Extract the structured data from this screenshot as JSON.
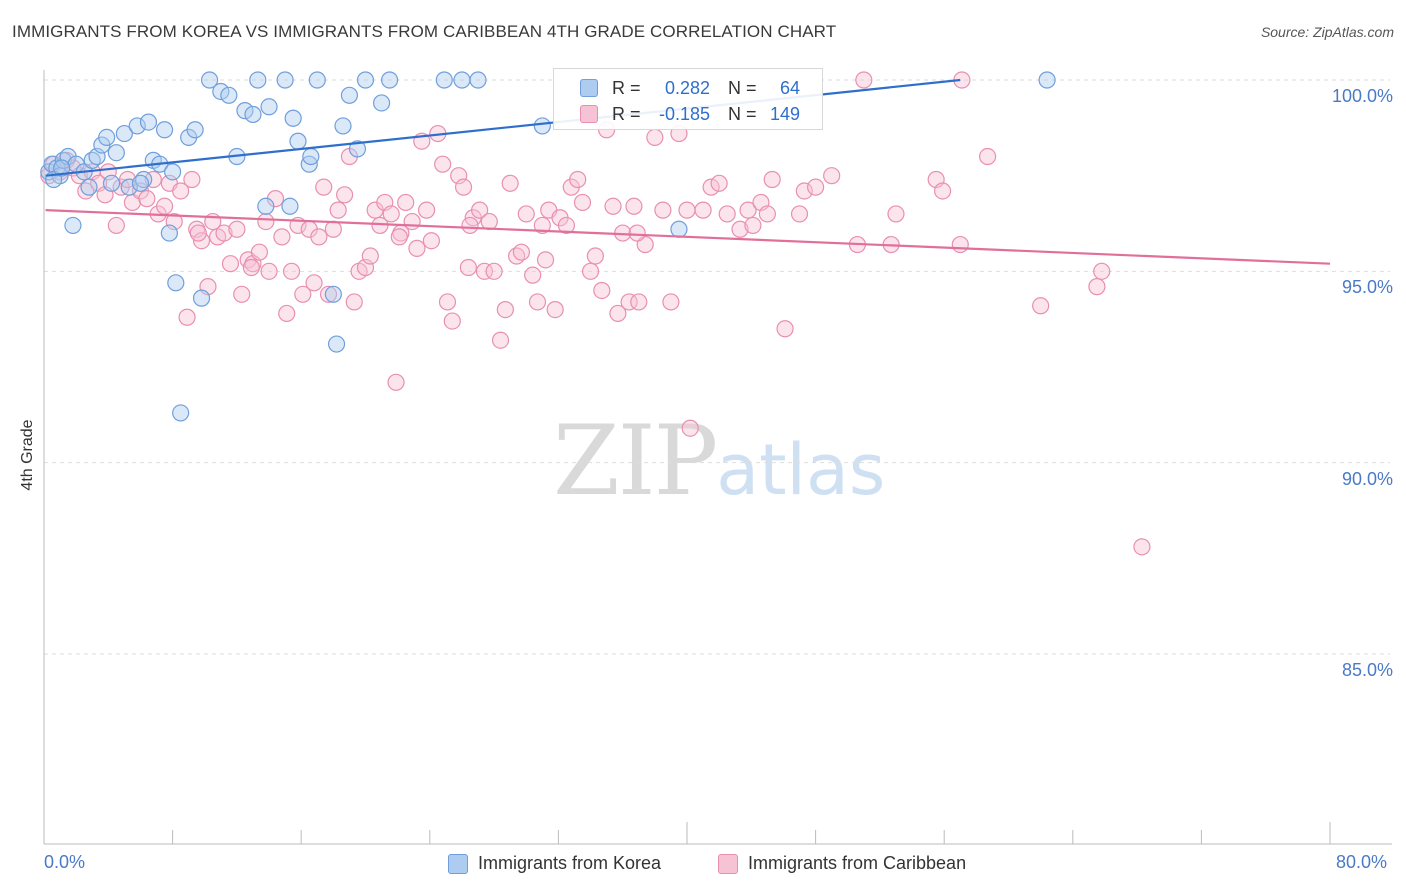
{
  "title": "IMMIGRANTS FROM KOREA VS IMMIGRANTS FROM CARIBBEAN 4TH GRADE CORRELATION CHART",
  "source": "Source: ZipAtlas.com",
  "watermark": {
    "zip": "ZIP",
    "atlas": "atlas"
  },
  "legend": {
    "korea": {
      "r_label": "R =",
      "r_value": "0.282",
      "n_label": "N =",
      "n_value": "64"
    },
    "caribbean": {
      "r_label": "R =",
      "r_value": "-0.185",
      "n_label": "N =",
      "n_value": "149"
    }
  },
  "colors": {
    "korea_fill": "#aecbf0",
    "korea_stroke": "#6f9fdc",
    "korea_line": "#2f6fcc",
    "caribbean_fill": "#f6c3d4",
    "caribbean_stroke": "#e98fb0",
    "caribbean_line": "#e0709a",
    "tick_text": "#4a7ac7",
    "grid": "#dddddd"
  },
  "chart_data": {
    "type": "scatter",
    "title": "IMMIGRANTS FROM KOREA VS IMMIGRANTS FROM CARIBBEAN 4TH GRADE CORRELATION CHART",
    "xlabel": "",
    "ylabel": "4th Grade",
    "xlim": [
      0,
      80
    ],
    "ylim": [
      80.5,
      100.8
    ],
    "x_tick_labels": [
      "0.0%",
      "80.0%"
    ],
    "y_ticks": [
      85,
      90,
      95,
      100
    ],
    "y_tick_labels": [
      "85.0%",
      "90.0%",
      "95.0%",
      "100.0%"
    ],
    "grid": "horizontal dashed",
    "legend_position": "top-center",
    "series": [
      {
        "name": "Immigrants from Korea",
        "r": 0.282,
        "n": 64,
        "trend": {
          "x": [
            0.1,
            57.0
          ],
          "y": [
            97.5,
            100.0
          ]
        },
        "points": [
          [
            0.3,
            97.6
          ],
          [
            0.5,
            97.8
          ],
          [
            0.8,
            97.7
          ],
          [
            1.0,
            97.5
          ],
          [
            1.2,
            97.9
          ],
          [
            1.5,
            98.0
          ],
          [
            1.8,
            96.2
          ],
          [
            2.0,
            97.8
          ],
          [
            2.5,
            97.6
          ],
          [
            3.0,
            97.9
          ],
          [
            3.3,
            98.0
          ],
          [
            3.6,
            98.3
          ],
          [
            3.9,
            98.5
          ],
          [
            4.2,
            97.3
          ],
          [
            4.5,
            98.1
          ],
          [
            5.0,
            98.6
          ],
          [
            5.3,
            97.2
          ],
          [
            5.8,
            98.8
          ],
          [
            6.2,
            97.4
          ],
          [
            6.5,
            98.9
          ],
          [
            6.8,
            97.9
          ],
          [
            7.2,
            97.8
          ],
          [
            7.5,
            98.7
          ],
          [
            7.8,
            96.0
          ],
          [
            8.0,
            97.6
          ],
          [
            8.2,
            94.7
          ],
          [
            8.5,
            91.3
          ],
          [
            9.0,
            98.5
          ],
          [
            9.4,
            98.7
          ],
          [
            9.8,
            94.3
          ],
          [
            10.3,
            100.0
          ],
          [
            11.0,
            99.7
          ],
          [
            11.5,
            99.6
          ],
          [
            12.0,
            98.0
          ],
          [
            12.5,
            99.2
          ],
          [
            13.0,
            99.1
          ],
          [
            13.3,
            100.0
          ],
          [
            13.8,
            96.7
          ],
          [
            14.0,
            99.3
          ],
          [
            15.0,
            100.0
          ],
          [
            15.3,
            96.7
          ],
          [
            15.5,
            99.0
          ],
          [
            15.8,
            98.4
          ],
          [
            16.5,
            97.8
          ],
          [
            17.0,
            100.0
          ],
          [
            18.0,
            94.4
          ],
          [
            18.2,
            93.1
          ],
          [
            18.6,
            98.8
          ],
          [
            19.0,
            99.6
          ],
          [
            19.5,
            98.2
          ],
          [
            20.0,
            100.0
          ],
          [
            21.0,
            99.4
          ],
          [
            21.5,
            100.0
          ],
          [
            24.9,
            100.0
          ],
          [
            26.0,
            100.0
          ],
          [
            27.0,
            100.0
          ],
          [
            31.0,
            98.8
          ],
          [
            39.5,
            96.1
          ],
          [
            62.4,
            100.0
          ],
          [
            0.6,
            97.4
          ],
          [
            1.1,
            97.7
          ],
          [
            2.8,
            97.2
          ],
          [
            6.0,
            97.3
          ],
          [
            16.6,
            98.0
          ]
        ]
      },
      {
        "name": "Immigrants from Caribbean",
        "r": -0.185,
        "n": 149,
        "trend": {
          "x": [
            0.1,
            80.0
          ],
          "y": [
            96.6,
            95.2
          ]
        },
        "points": [
          [
            0.3,
            97.5
          ],
          [
            0.6,
            97.8
          ],
          [
            1.0,
            97.6
          ],
          [
            1.4,
            97.9
          ],
          [
            1.8,
            97.7
          ],
          [
            2.2,
            97.5
          ],
          [
            2.6,
            97.1
          ],
          [
            3.0,
            97.6
          ],
          [
            3.4,
            97.3
          ],
          [
            3.8,
            97.0
          ],
          [
            4.0,
            97.6
          ],
          [
            4.5,
            96.2
          ],
          [
            4.8,
            97.2
          ],
          [
            5.2,
            97.4
          ],
          [
            5.5,
            96.8
          ],
          [
            6.0,
            97.1
          ],
          [
            6.4,
            96.9
          ],
          [
            6.8,
            97.4
          ],
          [
            7.1,
            96.5
          ],
          [
            7.5,
            96.7
          ],
          [
            7.8,
            97.3
          ],
          [
            8.1,
            96.3
          ],
          [
            8.5,
            97.1
          ],
          [
            8.9,
            93.8
          ],
          [
            9.2,
            97.4
          ],
          [
            9.5,
            96.1
          ],
          [
            9.8,
            95.8
          ],
          [
            10.2,
            94.6
          ],
          [
            10.5,
            96.3
          ],
          [
            10.8,
            95.9
          ],
          [
            11.2,
            96.0
          ],
          [
            11.6,
            95.2
          ],
          [
            12.0,
            96.1
          ],
          [
            12.3,
            94.4
          ],
          [
            12.7,
            95.3
          ],
          [
            13.0,
            95.2
          ],
          [
            13.4,
            95.5
          ],
          [
            13.8,
            96.3
          ],
          [
            14.0,
            95.0
          ],
          [
            14.4,
            96.9
          ],
          [
            14.8,
            95.9
          ],
          [
            15.1,
            93.9
          ],
          [
            15.4,
            95.0
          ],
          [
            15.8,
            96.2
          ],
          [
            16.1,
            94.4
          ],
          [
            16.5,
            96.1
          ],
          [
            16.8,
            94.7
          ],
          [
            17.1,
            95.9
          ],
          [
            17.4,
            97.2
          ],
          [
            17.7,
            94.4
          ],
          [
            18.0,
            96.1
          ],
          [
            18.3,
            96.6
          ],
          [
            18.7,
            97.0
          ],
          [
            19.0,
            98.0
          ],
          [
            19.3,
            94.2
          ],
          [
            19.6,
            95.0
          ],
          [
            20.0,
            95.1
          ],
          [
            20.3,
            95.4
          ],
          [
            20.6,
            96.6
          ],
          [
            20.9,
            96.2
          ],
          [
            21.2,
            96.8
          ],
          [
            21.6,
            96.5
          ],
          [
            21.9,
            92.1
          ],
          [
            22.2,
            96.0
          ],
          [
            22.5,
            96.8
          ],
          [
            22.9,
            96.3
          ],
          [
            23.2,
            95.6
          ],
          [
            23.5,
            98.4
          ],
          [
            23.8,
            96.6
          ],
          [
            24.1,
            95.8
          ],
          [
            24.5,
            98.6
          ],
          [
            24.8,
            97.8
          ],
          [
            25.1,
            94.2
          ],
          [
            25.4,
            93.7
          ],
          [
            25.8,
            97.5
          ],
          [
            26.1,
            97.2
          ],
          [
            26.4,
            95.1
          ],
          [
            26.7,
            96.4
          ],
          [
            27.1,
            96.6
          ],
          [
            27.4,
            95.0
          ],
          [
            27.7,
            96.3
          ],
          [
            28.0,
            95.0
          ],
          [
            28.4,
            93.2
          ],
          [
            28.7,
            94.0
          ],
          [
            29.0,
            97.3
          ],
          [
            29.4,
            95.4
          ],
          [
            29.7,
            95.5
          ],
          [
            30.0,
            96.5
          ],
          [
            30.4,
            94.9
          ],
          [
            30.7,
            94.2
          ],
          [
            31.0,
            96.2
          ],
          [
            31.4,
            96.6
          ],
          [
            31.8,
            94.0
          ],
          [
            32.1,
            96.4
          ],
          [
            32.5,
            96.2
          ],
          [
            32.8,
            97.2
          ],
          [
            33.2,
            97.4
          ],
          [
            33.5,
            96.8
          ],
          [
            34.0,
            95.0
          ],
          [
            34.3,
            95.4
          ],
          [
            34.7,
            94.5
          ],
          [
            35.0,
            98.7
          ],
          [
            35.4,
            96.7
          ],
          [
            35.7,
            93.9
          ],
          [
            36.0,
            96.0
          ],
          [
            36.4,
            94.2
          ],
          [
            36.7,
            96.7
          ],
          [
            37.0,
            94.2
          ],
          [
            37.4,
            95.7
          ],
          [
            38.0,
            98.5
          ],
          [
            38.5,
            96.6
          ],
          [
            39.0,
            94.2
          ],
          [
            39.5,
            98.6
          ],
          [
            40.0,
            96.6
          ],
          [
            40.2,
            90.9
          ],
          [
            41.0,
            96.6
          ],
          [
            41.5,
            97.2
          ],
          [
            42.0,
            97.3
          ],
          [
            42.5,
            96.5
          ],
          [
            43.3,
            96.1
          ],
          [
            43.8,
            96.6
          ],
          [
            44.6,
            96.8
          ],
          [
            45.0,
            96.5
          ],
          [
            45.3,
            97.4
          ],
          [
            46.1,
            93.5
          ],
          [
            47.0,
            96.5
          ],
          [
            47.3,
            97.1
          ],
          [
            48.0,
            97.2
          ],
          [
            49.0,
            97.5
          ],
          [
            50.6,
            95.7
          ],
          [
            51.0,
            100.0
          ],
          [
            52.7,
            95.7
          ],
          [
            55.5,
            97.4
          ],
          [
            55.9,
            97.1
          ],
          [
            57.0,
            95.7
          ],
          [
            57.1,
            100.0
          ],
          [
            58.7,
            98.0
          ],
          [
            62.0,
            94.1
          ],
          [
            65.5,
            94.6
          ],
          [
            65.8,
            95.0
          ],
          [
            68.3,
            87.8
          ],
          [
            9.6,
            96.0
          ],
          [
            12.9,
            95.1
          ],
          [
            22.1,
            95.9
          ],
          [
            26.5,
            96.2
          ],
          [
            31.2,
            95.3
          ],
          [
            36.9,
            96.0
          ],
          [
            44.1,
            96.2
          ],
          [
            53.0,
            96.5
          ]
        ]
      }
    ]
  }
}
